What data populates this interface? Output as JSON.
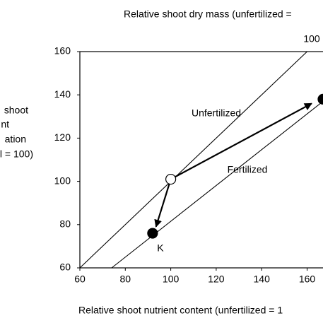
{
  "chart_data": {
    "type": "vector",
    "title": "Relative shoot dry mass (unfertilized =",
    "x_label": "Relative shoot nutrient content (unfertilized = 1",
    "y_label_lines": [
      "shoot",
      "nt",
      "ation",
      "l = 100)"
    ],
    "isopleth_label": "100",
    "xlim": [
      60,
      167
    ],
    "ylim": [
      60,
      160
    ],
    "xticks": [
      60,
      80,
      100,
      120,
      140,
      160
    ],
    "yticks": [
      60,
      80,
      100,
      120,
      140,
      160
    ],
    "color": "#000000",
    "lines": [
      {
        "name": "Unfertilized",
        "x": [
          60,
          160
        ],
        "y": [
          60,
          160
        ]
      },
      {
        "name": "Fertilized",
        "x": [
          74,
          167
        ],
        "y": [
          60,
          137
        ]
      }
    ],
    "points": [
      {
        "x": 100,
        "y": 101,
        "filled": false
      },
      {
        "x": 92,
        "y": 76,
        "filled": true,
        "label": "K"
      },
      {
        "x": 167,
        "y": 138,
        "filled": true
      }
    ],
    "arrows": [
      {
        "x": [
          100,
          93.5
        ],
        "y": [
          101,
          79
        ]
      },
      {
        "x": [
          100,
          162
        ],
        "y": [
          101,
          136
        ]
      }
    ]
  }
}
